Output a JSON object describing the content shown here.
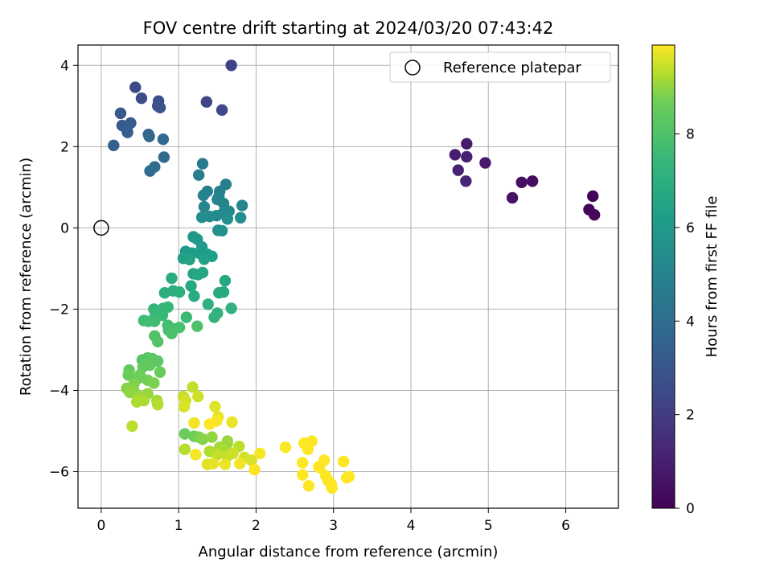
{
  "chart_data": {
    "type": "scatter",
    "title": "FOV centre drift starting at 2024/03/20 07:43:42",
    "xlabel": "Angular distance from reference (arcmin)",
    "ylabel": "Rotation from reference (arcmin)",
    "xlim": [
      -0.3,
      6.68
    ],
    "ylim": [
      -6.9,
      4.5
    ],
    "xticks": [
      0,
      1,
      2,
      3,
      4,
      5,
      6
    ],
    "yticks": [
      -6,
      -4,
      -2,
      0,
      2,
      4
    ],
    "grid": true,
    "legend": {
      "position": "top-right",
      "entries": [
        "Reference platepar"
      ]
    },
    "reference_point": {
      "x": 0,
      "y": 0,
      "label": "Reference platepar"
    },
    "colorbar": {
      "label": "Hours from first FF file",
      "range": [
        0,
        9.9
      ],
      "ticks": [
        0,
        2,
        4,
        6,
        8
      ],
      "colormap": "viridis"
    },
    "series": [
      {
        "points": [
          [
            6.35,
            0.78,
            0.1
          ],
          [
            6.3,
            0.45,
            0.15
          ],
          [
            6.37,
            0.32,
            0.2
          ],
          [
            5.57,
            1.15,
            0.4
          ],
          [
            5.43,
            1.12,
            0.5
          ],
          [
            5.31,
            0.74,
            0.6
          ],
          [
            4.96,
            1.6,
            0.8
          ],
          [
            4.72,
            2.07,
            0.9
          ],
          [
            4.57,
            1.8,
            1.0
          ],
          [
            4.72,
            1.75,
            1.05
          ],
          [
            4.61,
            1.42,
            1.1
          ],
          [
            4.71,
            1.15,
            1.2
          ],
          [
            1.68,
            4.0,
            2.2
          ],
          [
            1.36,
            3.1,
            2.3
          ],
          [
            1.56,
            2.9,
            2.4
          ],
          [
            0.44,
            3.46,
            2.5
          ],
          [
            0.52,
            3.19,
            2.6
          ],
          [
            0.74,
            3.12,
            2.7
          ],
          [
            0.73,
            3.0,
            2.8
          ],
          [
            0.76,
            2.96,
            2.9
          ],
          [
            0.25,
            2.82,
            3.1
          ],
          [
            0.27,
            2.52,
            3.2
          ],
          [
            0.38,
            2.58,
            3.3
          ],
          [
            0.33,
            2.42,
            3.35
          ],
          [
            0.34,
            2.35,
            3.4
          ],
          [
            0.16,
            2.03,
            3.5
          ],
          [
            0.61,
            2.3,
            3.6
          ],
          [
            0.62,
            2.25,
            3.7
          ],
          [
            0.8,
            2.18,
            3.8
          ],
          [
            0.81,
            1.74,
            3.85
          ],
          [
            0.69,
            1.5,
            3.9
          ],
          [
            0.63,
            1.4,
            4.0
          ],
          [
            1.31,
            1.58,
            4.6
          ],
          [
            1.26,
            1.3,
            4.7
          ],
          [
            1.61,
            1.07,
            4.8
          ],
          [
            1.37,
            0.9,
            4.85
          ],
          [
            1.53,
            0.9,
            4.9
          ],
          [
            1.32,
            0.8,
            4.95
          ],
          [
            1.52,
            0.77,
            5.0
          ],
          [
            1.5,
            0.7,
            5.05
          ],
          [
            1.58,
            0.6,
            5.1
          ],
          [
            1.33,
            0.52,
            5.15
          ],
          [
            1.82,
            0.55,
            5.2
          ],
          [
            1.65,
            0.41,
            5.25
          ],
          [
            1.58,
            0.38,
            5.3
          ],
          [
            1.49,
            0.3,
            5.35
          ],
          [
            1.4,
            0.28,
            5.4
          ],
          [
            1.3,
            0.26,
            5.45
          ],
          [
            1.8,
            0.25,
            5.5
          ],
          [
            1.63,
            0.22,
            5.55
          ],
          [
            1.51,
            -0.06,
            5.6
          ],
          [
            1.56,
            -0.07,
            5.65
          ],
          [
            1.19,
            -0.22,
            5.9
          ],
          [
            1.24,
            -0.28,
            6.0
          ],
          [
            1.3,
            -0.47,
            6.05
          ],
          [
            1.09,
            -0.58,
            6.1
          ],
          [
            1.17,
            -0.62,
            6.15
          ],
          [
            1.26,
            -0.62,
            6.2
          ],
          [
            1.37,
            -0.65,
            6.25
          ],
          [
            1.43,
            -0.7,
            6.3
          ],
          [
            1.06,
            -0.75,
            6.35
          ],
          [
            1.33,
            -0.77,
            6.4
          ],
          [
            1.14,
            -0.78,
            6.45
          ],
          [
            1.19,
            -1.13,
            6.5
          ],
          [
            1.31,
            -1.1,
            6.55
          ],
          [
            1.25,
            -1.15,
            6.6
          ],
          [
            1.6,
            -1.3,
            6.65
          ],
          [
            1.16,
            -1.43,
            6.7
          ],
          [
            1.58,
            -1.58,
            6.75
          ],
          [
            1.52,
            -1.6,
            6.8
          ],
          [
            1.2,
            -1.68,
            6.85
          ],
          [
            0.91,
            -1.24,
            6.9
          ],
          [
            0.82,
            -1.6,
            6.95
          ],
          [
            0.93,
            -1.55,
            7.0
          ],
          [
            1.01,
            -1.58,
            7.05
          ],
          [
            1.38,
            -1.88,
            7.1
          ],
          [
            1.68,
            -1.98,
            7.15
          ],
          [
            1.5,
            -2.1,
            7.2
          ],
          [
            1.46,
            -2.2,
            7.25
          ],
          [
            0.68,
            -2.0,
            7.3
          ],
          [
            0.8,
            -1.98,
            7.35
          ],
          [
            0.86,
            -1.95,
            7.4
          ],
          [
            0.7,
            -2.1,
            7.45
          ],
          [
            0.79,
            -2.15,
            7.5
          ],
          [
            1.1,
            -2.2,
            7.55
          ],
          [
            0.55,
            -2.28,
            7.6
          ],
          [
            0.69,
            -2.3,
            7.65
          ],
          [
            0.61,
            -2.3,
            7.7
          ],
          [
            0.86,
            -2.4,
            7.75
          ],
          [
            0.92,
            -2.48,
            7.8
          ],
          [
            0.87,
            -2.52,
            7.85
          ],
          [
            1.01,
            -2.45,
            7.9
          ],
          [
            0.91,
            -2.6,
            7.95
          ],
          [
            1.24,
            -2.42,
            8.0
          ],
          [
            0.69,
            -2.66,
            8.05
          ],
          [
            0.73,
            -2.8,
            8.1
          ],
          [
            0.53,
            -3.25,
            8.15
          ],
          [
            0.6,
            -3.2,
            8.2
          ],
          [
            0.66,
            -3.22,
            8.25
          ],
          [
            0.73,
            -3.28,
            8.3
          ],
          [
            0.59,
            -3.35,
            8.35
          ],
          [
            0.54,
            -3.42,
            8.4
          ],
          [
            0.63,
            -3.38,
            8.45
          ],
          [
            0.36,
            -3.5,
            8.5
          ],
          [
            0.76,
            -3.55,
            8.55
          ],
          [
            0.35,
            -3.62,
            8.6
          ],
          [
            0.5,
            -3.62,
            8.65
          ],
          [
            0.48,
            -3.7,
            8.7
          ],
          [
            0.6,
            -3.75,
            8.75
          ],
          [
            0.68,
            -3.82,
            8.8
          ],
          [
            0.42,
            -3.85,
            8.85
          ],
          [
            0.33,
            -3.95,
            8.9
          ],
          [
            0.42,
            -4.0,
            8.95
          ],
          [
            0.37,
            -4.05,
            9.0
          ],
          [
            0.6,
            -4.08,
            9.05
          ],
          [
            0.49,
            -4.15,
            9.1
          ],
          [
            0.72,
            -4.25,
            9.15
          ],
          [
            0.55,
            -4.25,
            9.2
          ],
          [
            0.46,
            -4.28,
            9.25
          ],
          [
            0.73,
            -4.35,
            9.3
          ],
          [
            0.4,
            -4.88,
            9.35
          ],
          [
            1.18,
            -3.92,
            9.4
          ],
          [
            1.06,
            -4.15,
            9.45
          ],
          [
            1.25,
            -4.15,
            9.5
          ],
          [
            1.09,
            -4.25,
            9.55
          ],
          [
            1.07,
            -4.4,
            9.6
          ],
          [
            1.47,
            -4.4,
            9.65
          ],
          [
            1.51,
            -4.65,
            9.7
          ],
          [
            1.69,
            -4.78,
            9.75
          ],
          [
            1.2,
            -4.8,
            9.8
          ],
          [
            1.49,
            -4.75,
            9.85
          ],
          [
            1.4,
            -4.83,
            9.9
          ],
          [
            1.08,
            -5.07,
            8.6
          ],
          [
            1.2,
            -5.13,
            8.7
          ],
          [
            1.26,
            -5.15,
            8.8
          ],
          [
            1.31,
            -5.2,
            8.9
          ],
          [
            1.43,
            -5.15,
            9.0
          ],
          [
            1.63,
            -5.25,
            9.05
          ],
          [
            1.63,
            -5.3,
            9.1
          ],
          [
            1.53,
            -5.4,
            9.15
          ],
          [
            1.57,
            -5.45,
            9.2
          ],
          [
            1.4,
            -5.5,
            9.25
          ],
          [
            1.08,
            -5.45,
            9.3
          ],
          [
            1.78,
            -5.38,
            9.35
          ],
          [
            1.5,
            -5.58,
            9.4
          ],
          [
            1.63,
            -5.62,
            9.45
          ],
          [
            1.7,
            -5.55,
            9.5
          ],
          [
            1.85,
            -5.65,
            9.55
          ],
          [
            1.94,
            -5.72,
            9.6
          ],
          [
            1.37,
            -5.82,
            9.65
          ],
          [
            1.45,
            -5.8,
            9.7
          ],
          [
            1.6,
            -5.82,
            9.75
          ],
          [
            1.79,
            -5.8,
            9.8
          ],
          [
            1.22,
            -5.58,
            9.82
          ],
          [
            2.05,
            -5.55,
            9.84
          ],
          [
            1.98,
            -5.95,
            9.86
          ],
          [
            2.38,
            -5.4,
            9.88
          ],
          [
            2.62,
            -5.3,
            9.9
          ],
          [
            2.72,
            -5.25,
            9.9
          ],
          [
            2.67,
            -5.45,
            9.9
          ],
          [
            2.6,
            -5.78,
            9.9
          ],
          [
            2.81,
            -5.88,
            9.9
          ],
          [
            2.6,
            -6.08,
            9.9
          ],
          [
            2.9,
            -6.1,
            9.9
          ],
          [
            2.93,
            -6.22,
            9.9
          ],
          [
            2.97,
            -6.3,
            9.9
          ],
          [
            2.68,
            -6.35,
            9.9
          ],
          [
            2.98,
            -6.4,
            9.9
          ],
          [
            3.13,
            -5.75,
            9.9
          ],
          [
            3.17,
            -6.15,
            9.9
          ],
          [
            3.2,
            -6.12,
            9.9
          ],
          [
            2.88,
            -5.72,
            9.9
          ],
          [
            2.82,
            -5.9,
            9.9
          ]
        ]
      }
    ]
  }
}
